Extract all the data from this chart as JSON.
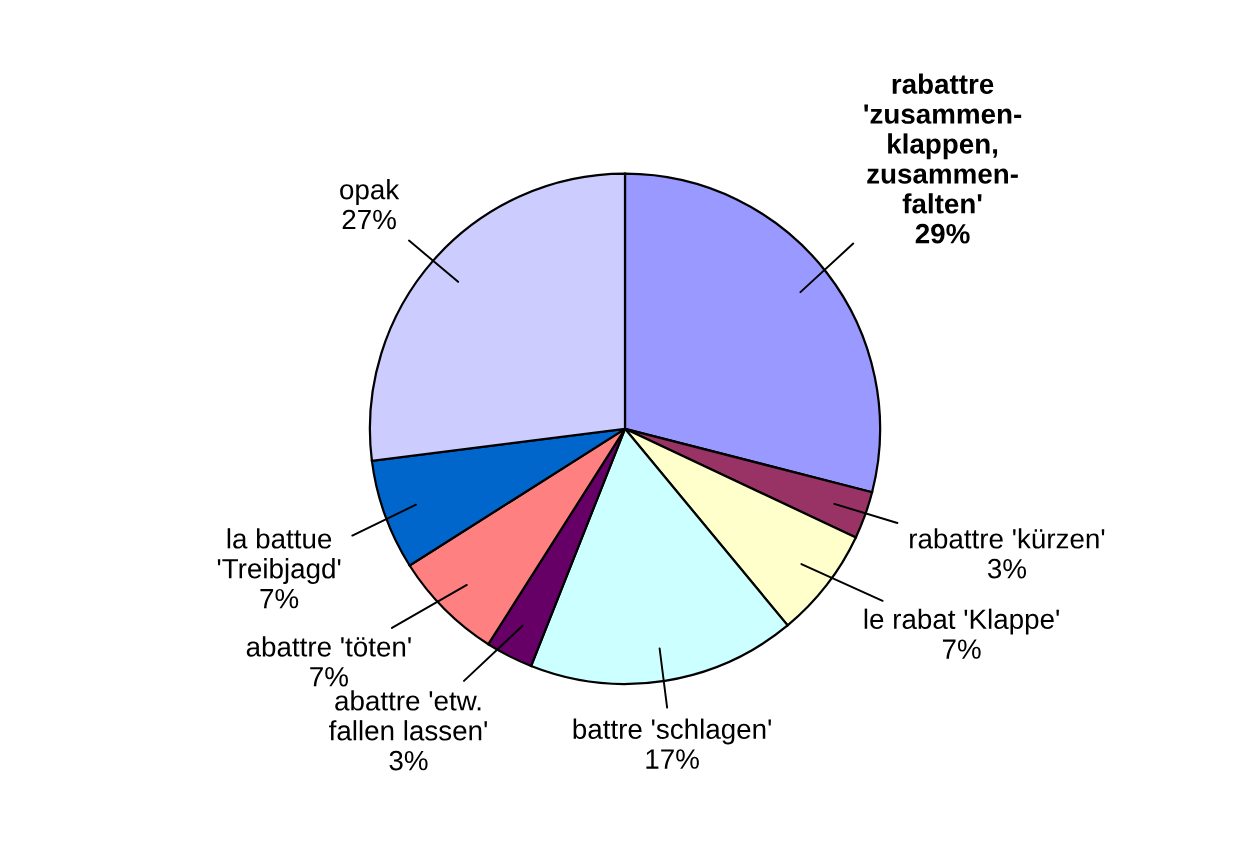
{
  "chart_data": {
    "type": "pie",
    "categories": [
      "rabattre\n'zusammen-\nklappen,\nzusammen-\nfalten'",
      "rabattre 'kürzen'",
      "le rabat 'Klappe'",
      "battre 'schlagen'",
      "abattre 'etw.\nfallen lassen'",
      "abattre 'töten'",
      "la battue\n'Treibjagd'",
      "opak"
    ],
    "values": [
      29,
      3,
      7,
      17,
      3,
      7,
      7,
      27
    ],
    "value_labels": [
      "29%",
      "3%",
      "7%",
      "17%",
      "3%",
      "7%",
      "7%",
      "27%"
    ],
    "colors": [
      "#9999ff",
      "#993366",
      "#ffffcc",
      "#ccffff",
      "#660066",
      "#ff8080",
      "#0066cc",
      "#ccccff"
    ]
  }
}
